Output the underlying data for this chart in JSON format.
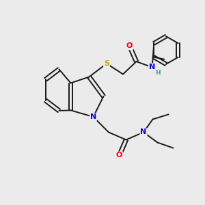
{
  "bg_color": "#ebebeb",
  "line_color": "#1a1a1a",
  "atom_colors": {
    "N": "#0000ee",
    "O": "#ff0000",
    "S": "#ccaa00",
    "H": "#4a9090",
    "C": "#1a1a1a"
  },
  "lw": 1.4,
  "fs": 8.0
}
